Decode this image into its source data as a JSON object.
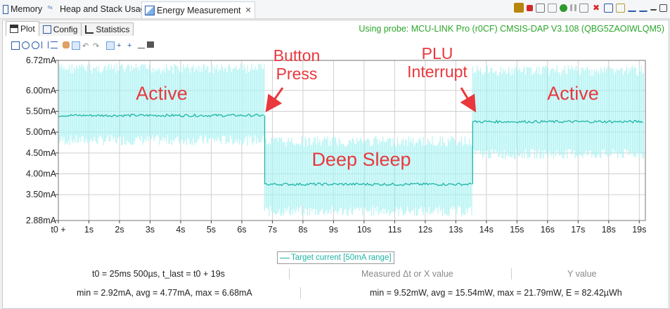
{
  "tabs": [
    {
      "label": "Memory",
      "icon": "memory-icon"
    },
    {
      "label": "Heap and Stack Usage",
      "icon": "heap-stack-icon"
    },
    {
      "label": "Energy Measurement",
      "icon": "energy-icon",
      "active": true
    }
  ],
  "subtabs": [
    {
      "label": "Plot",
      "icon": "plot-icon",
      "active": true
    },
    {
      "label": "Config",
      "icon": "config-icon"
    },
    {
      "label": "Statistics",
      "icon": "statistics-icon"
    }
  ],
  "probe_label": "Using probe: MCU-LINK Pro (r0CF) CMSIS-DAP V3.108 (QBG5ZAOIWLQM5)",
  "chart_data": {
    "type": "line",
    "y_ticks": [
      "6.72mA",
      "6.00mA",
      "5.50mA",
      "5.00mA",
      "4.50mA",
      "4.00mA",
      "3.50mA",
      "2.88mA"
    ],
    "y_tick_values": [
      6.72,
      6.0,
      5.5,
      5.0,
      4.5,
      4.0,
      3.5,
      2.88
    ],
    "ylim": [
      2.88,
      6.72
    ],
    "x_ticks": [
      "t0 +",
      "1s",
      "2s",
      "3s",
      "4s",
      "5s",
      "6s",
      "7s",
      "8s",
      "9s",
      "10s",
      "11s",
      "12s",
      "13s",
      "14s",
      "15s",
      "16s",
      "17s",
      "18s",
      "19s"
    ],
    "xlim": [
      0,
      19.2
    ],
    "grid": true,
    "series": [
      {
        "name": "Target current [50mA range]",
        "segments": [
          {
            "x_start": 0,
            "x_end": 6.75,
            "mean": 5.4,
            "band_low": 4.68,
            "band_high": 6.65
          },
          {
            "x_start": 6.75,
            "x_end": 13.55,
            "mean": 3.75,
            "band_low": 2.98,
            "band_high": 4.9
          },
          {
            "x_start": 13.55,
            "x_end": 19.15,
            "mean": 5.25,
            "band_low": 4.35,
            "band_high": 6.6
          }
        ]
      }
    ],
    "annotations": [
      {
        "text": "Active",
        "x": 3.0,
        "y": 6.0
      },
      {
        "text": "Button\nPress",
        "x": 7.2,
        "y": 6.5
      },
      {
        "text": "PLU\nInterrupt",
        "x": 12.8,
        "y": 6.5
      },
      {
        "text": "Deep Sleep",
        "x": 9.6,
        "y": 4.25
      },
      {
        "text": "Active",
        "x": 16.3,
        "y": 6.0
      }
    ],
    "legend_entry": "Target current [50mA range]",
    "legend_position": "bottom-center",
    "colors": {
      "mean": "#1fb5a5",
      "band": "#a8f2f2",
      "annotation": "#e8383d",
      "grid": "#cfcfcf"
    }
  },
  "stats": {
    "time_info": "t0 = 25ms 500µs, t_last = t0 + 19s",
    "measured_label": "Measured Δt or X value",
    "y_value_label": "Y value",
    "current_stats": "min = 2.92mA, avg = 4.77mA, max = 6.68mA",
    "power_stats": "min = 9.52mW, avg = 15.54mW, max = 21.79mW, E = 82.42µWh"
  }
}
